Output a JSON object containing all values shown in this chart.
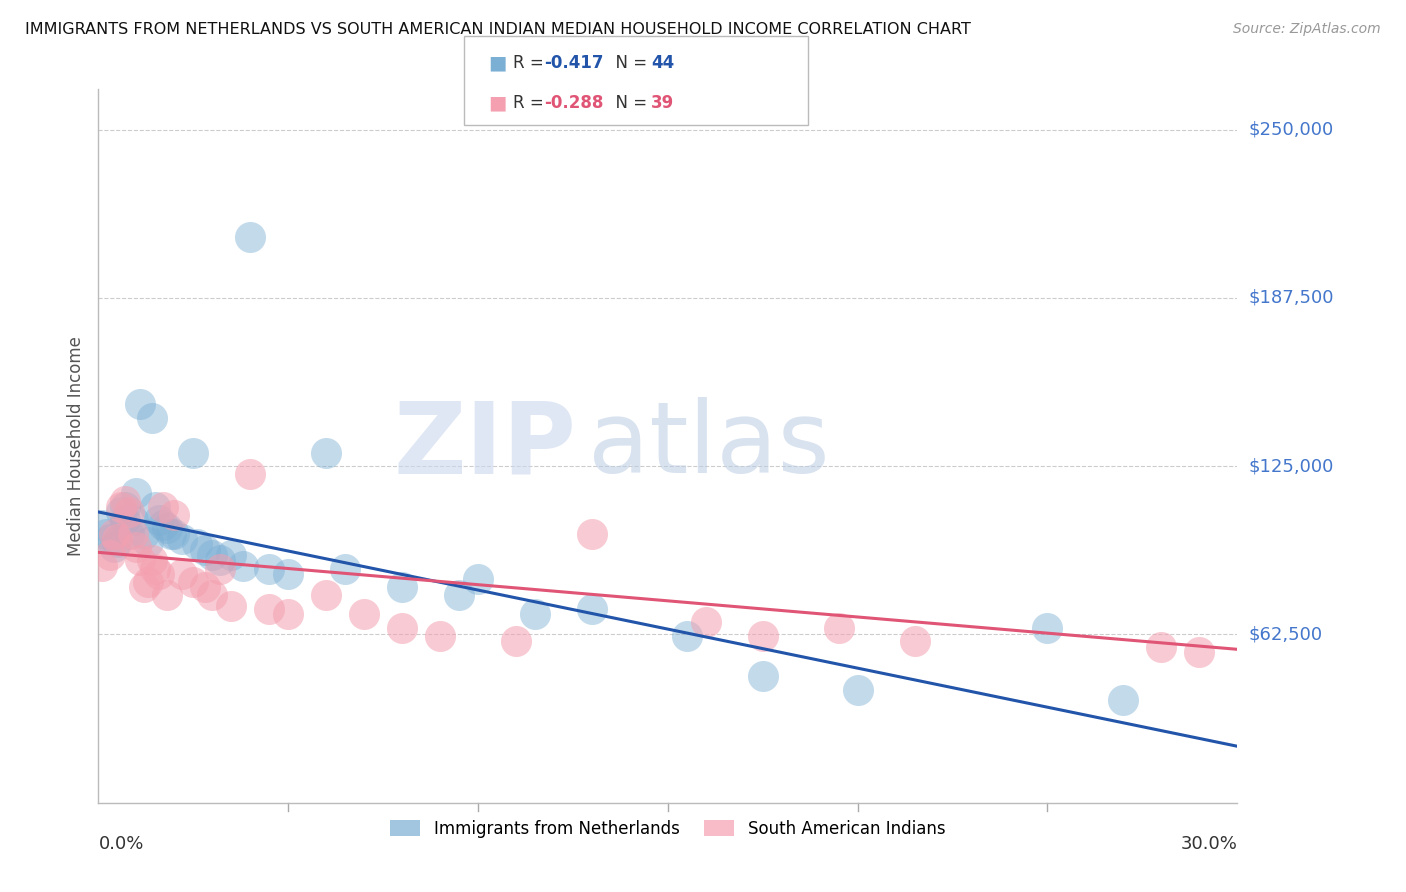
{
  "title": "IMMIGRANTS FROM NETHERLANDS VS SOUTH AMERICAN INDIAN MEDIAN HOUSEHOLD INCOME CORRELATION CHART",
  "source": "Source: ZipAtlas.com",
  "ylabel": "Median Household Income",
  "ytick_labels": [
    "$250,000",
    "$187,500",
    "$125,000",
    "$62,500"
  ],
  "ytick_values": [
    250000,
    187500,
    125000,
    62500
  ],
  "ylim": [
    0,
    265000
  ],
  "xlim": [
    0.0,
    0.3
  ],
  "legend_labels_bottom": [
    "Immigrants from Netherlands",
    "South American Indians"
  ],
  "watermark_zip": "ZIP",
  "watermark_atlas": "atlas",
  "blue_scatter_x": [
    0.001,
    0.002,
    0.003,
    0.004,
    0.005,
    0.006,
    0.007,
    0.007,
    0.008,
    0.009,
    0.01,
    0.011,
    0.012,
    0.013,
    0.014,
    0.015,
    0.016,
    0.017,
    0.018,
    0.019,
    0.02,
    0.022,
    0.025,
    0.026,
    0.028,
    0.03,
    0.032,
    0.035,
    0.038,
    0.04,
    0.045,
    0.05,
    0.06,
    0.065,
    0.08,
    0.095,
    0.1,
    0.115,
    0.13,
    0.155,
    0.175,
    0.2,
    0.25,
    0.27
  ],
  "blue_scatter_y": [
    103000,
    100000,
    98000,
    95000,
    97000,
    108000,
    105000,
    110000,
    100000,
    105000,
    115000,
    148000,
    100000,
    97000,
    143000,
    110000,
    105000,
    103000,
    102000,
    100000,
    100000,
    98000,
    130000,
    96000,
    94000,
    92000,
    90000,
    92000,
    88000,
    210000,
    87000,
    85000,
    130000,
    87000,
    80000,
    77000,
    83000,
    70000,
    72000,
    62000,
    47000,
    42000,
    65000,
    38000
  ],
  "pink_scatter_x": [
    0.001,
    0.003,
    0.004,
    0.005,
    0.006,
    0.007,
    0.008,
    0.009,
    0.01,
    0.011,
    0.012,
    0.013,
    0.014,
    0.015,
    0.016,
    0.017,
    0.018,
    0.02,
    0.022,
    0.025,
    0.028,
    0.03,
    0.032,
    0.035,
    0.04,
    0.045,
    0.05,
    0.06,
    0.07,
    0.08,
    0.09,
    0.11,
    0.13,
    0.16,
    0.175,
    0.195,
    0.215,
    0.28,
    0.29
  ],
  "pink_scatter_y": [
    88000,
    92000,
    100000,
    98000,
    110000,
    112000,
    108000,
    100000,
    95000,
    90000,
    80000,
    82000,
    90000,
    87000,
    85000,
    110000,
    77000,
    107000,
    85000,
    82000,
    80000,
    77000,
    87000,
    73000,
    122000,
    72000,
    70000,
    77000,
    70000,
    65000,
    62000,
    60000,
    100000,
    67000,
    62000,
    65000,
    60000,
    58000,
    56000
  ],
  "blue_color": "#7bafd4",
  "pink_color": "#f4a0b0",
  "blue_line_color": "#2255aa",
  "pink_line_color": "#e05575",
  "blue_reg_slope": -290000,
  "blue_reg_intercept": 108000,
  "pink_reg_slope": -120000,
  "pink_reg_intercept": 93000,
  "background_color": "#ffffff",
  "grid_color": "#cccccc"
}
